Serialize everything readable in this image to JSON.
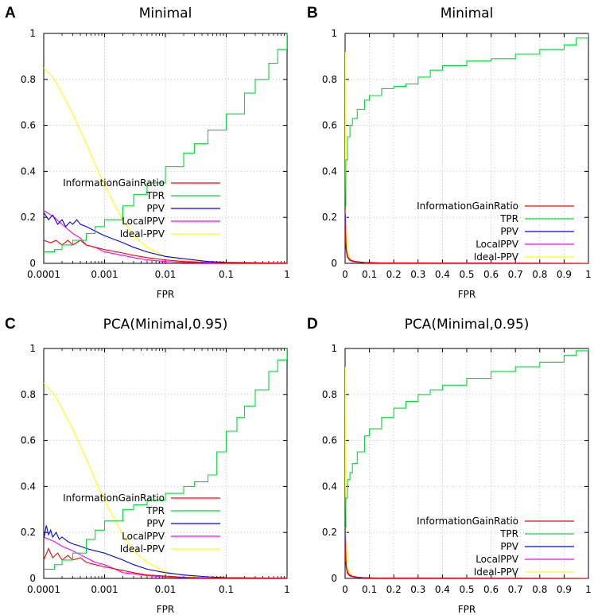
{
  "colors": {
    "InformationGainRatio": "#ff0000",
    "TPR": "#00dd33",
    "PPV": "#0000ff",
    "LocalPPV": "#ff00ff",
    "Ideal-PPV": "#ffff00",
    "grid": "#bbbbbb",
    "axis": "#000000"
  },
  "legend_order": [
    "InformationGainRatio",
    "TPR",
    "PPV",
    "LocalPPV",
    "Ideal-PPV"
  ],
  "chart_data": [
    {
      "panel": "A",
      "title": "Minimal",
      "type": "line",
      "xscale": "log",
      "xlabel": "FPR",
      "ylabel": "",
      "xlim": [
        0.0001,
        1
      ],
      "ylim": [
        0,
        1
      ],
      "xticks": [
        0.0001,
        0.001,
        0.01,
        0.1,
        1
      ],
      "xtick_labels": [
        "0.0001",
        "0.001",
        "0.01",
        "0.1",
        "1"
      ],
      "yticks": [
        0,
        0.2,
        0.4,
        0.6,
        0.8,
        1
      ],
      "ytick_labels": [
        "0",
        "0.2",
        "0.4",
        "0.6",
        "0.8",
        "1"
      ],
      "grid": true,
      "legend": "bottom-center",
      "series": [
        {
          "name": "InformationGainRatio",
          "x": [
            0.0001,
            0.00013,
            0.00016,
            0.0002,
            0.00025,
            0.0003,
            0.0004,
            0.0005,
            0.0007,
            0.001,
            0.002,
            0.003,
            0.005,
            0.01,
            0.02,
            0.05,
            0.1,
            1
          ],
          "y": [
            0.1,
            0.09,
            0.1,
            0.08,
            0.1,
            0.08,
            0.1,
            0.08,
            0.07,
            0.06,
            0.045,
            0.035,
            0.025,
            0.015,
            0.008,
            0.004,
            0.002,
            0.001
          ]
        },
        {
          "name": "TPR",
          "x": [
            0.0001,
            0.00015,
            0.0002,
            0.0003,
            0.0005,
            0.0007,
            0.001,
            0.002,
            0.003,
            0.005,
            0.01,
            0.02,
            0.03,
            0.05,
            0.1,
            0.2,
            0.3,
            0.5,
            0.7,
            1
          ],
          "y": [
            0.05,
            0.06,
            0.08,
            0.1,
            0.13,
            0.16,
            0.19,
            0.25,
            0.3,
            0.35,
            0.42,
            0.48,
            0.52,
            0.58,
            0.65,
            0.74,
            0.8,
            0.87,
            0.93,
            1.0
          ]
        },
        {
          "name": "PPV",
          "x": [
            0.0001,
            0.00012,
            0.00014,
            0.00017,
            0.0002,
            0.00023,
            0.00027,
            0.0003,
            0.00035,
            0.0004,
            0.0005,
            0.0007,
            0.001,
            0.002,
            0.003,
            0.005,
            0.01,
            0.02,
            0.05,
            0.1,
            1
          ],
          "y": [
            0.22,
            0.19,
            0.21,
            0.17,
            0.19,
            0.16,
            0.18,
            0.17,
            0.19,
            0.17,
            0.16,
            0.14,
            0.12,
            0.09,
            0.07,
            0.05,
            0.03,
            0.02,
            0.008,
            0.004,
            0.001
          ]
        },
        {
          "name": "LocalPPV",
          "x": [
            0.0001,
            0.00015,
            0.0002,
            0.0003,
            0.0004,
            0.0005,
            0.0007,
            0.001,
            0.002,
            0.003,
            0.005,
            0.01,
            0.02,
            0.05,
            1
          ],
          "y": [
            0.23,
            0.2,
            0.17,
            0.13,
            0.11,
            0.08,
            0.07,
            0.05,
            0.035,
            0.025,
            0.015,
            0.008,
            0.004,
            0.002,
            0.001
          ]
        },
        {
          "name": "Ideal-PPV",
          "x": [
            0.0001,
            0.00015,
            0.0002,
            0.0003,
            0.0005,
            0.0007,
            0.001,
            0.0015,
            0.002,
            0.003,
            0.005,
            0.01,
            0.02,
            0.05,
            0.1,
            0.2,
            1
          ],
          "y": [
            0.85,
            0.8,
            0.74,
            0.65,
            0.52,
            0.43,
            0.34,
            0.25,
            0.19,
            0.12,
            0.07,
            0.03,
            0.012,
            0.004,
            0.002,
            0.001,
            0.0
          ]
        }
      ]
    },
    {
      "panel": "B",
      "title": "Minimal",
      "type": "line",
      "xscale": "linear",
      "xlabel": "FPR",
      "ylabel": "",
      "xlim": [
        0,
        1
      ],
      "ylim": [
        0,
        1
      ],
      "xticks": [
        0,
        0.1,
        0.2,
        0.3,
        0.4,
        0.5,
        0.6,
        0.7,
        0.8,
        0.9,
        1
      ],
      "xtick_labels": [
        "0",
        "0.1",
        "0.2",
        "0.3",
        "0.4",
        "0.5",
        "0.6",
        "0.7",
        "0.8",
        "0.9",
        "1"
      ],
      "yticks": [
        0,
        0.2,
        0.4,
        0.6,
        0.8,
        1
      ],
      "ytick_labels": [
        "0",
        "0.2",
        "0.4",
        "0.6",
        "0.8",
        "1"
      ],
      "grid": true,
      "legend": "bottom-right",
      "series": [
        {
          "name": "InformationGainRatio",
          "x": [
            0,
            0.003,
            0.008,
            0.015,
            0.03,
            0.06,
            0.1,
            1
          ],
          "y": [
            0.18,
            0.08,
            0.04,
            0.02,
            0.01,
            0.005,
            0.002,
            0.0
          ]
        },
        {
          "name": "TPR",
          "x": [
            0,
            0.003,
            0.01,
            0.02,
            0.03,
            0.05,
            0.08,
            0.1,
            0.15,
            0.2,
            0.25,
            0.3,
            0.35,
            0.4,
            0.5,
            0.6,
            0.7,
            0.8,
            0.9,
            0.95,
            1
          ],
          "y": [
            0.25,
            0.45,
            0.55,
            0.6,
            0.63,
            0.67,
            0.71,
            0.73,
            0.76,
            0.77,
            0.78,
            0.81,
            0.84,
            0.86,
            0.88,
            0.89,
            0.91,
            0.93,
            0.95,
            0.98,
            1.0
          ]
        },
        {
          "name": "PPV",
          "x": [
            0,
            0.002,
            0.005,
            0.01,
            0.02,
            0.04,
            0.08,
            0.15,
            1
          ],
          "y": [
            0.22,
            0.12,
            0.06,
            0.03,
            0.015,
            0.008,
            0.004,
            0.002,
            0.0
          ]
        },
        {
          "name": "LocalPPV",
          "x": [
            0,
            0.002,
            0.005,
            0.01,
            0.02,
            0.04,
            0.08,
            0.15,
            1
          ],
          "y": [
            0.23,
            0.1,
            0.05,
            0.025,
            0.012,
            0.006,
            0.003,
            0.001,
            0.0
          ]
        },
        {
          "name": "Ideal-PPV",
          "x": [
            0,
            0.001,
            0.002,
            0.004,
            0.008,
            0.015,
            0.03,
            0.06,
            0.1,
            1
          ],
          "y": [
            0.92,
            0.6,
            0.4,
            0.2,
            0.08,
            0.03,
            0.01,
            0.004,
            0.002,
            0.0
          ]
        }
      ]
    },
    {
      "panel": "C",
      "title": "PCA(Minimal,0.95)",
      "type": "line",
      "xscale": "log",
      "xlabel": "FPR",
      "ylabel": "",
      "xlim": [
        0.0001,
        1
      ],
      "ylim": [
        0,
        1
      ],
      "xticks": [
        0.0001,
        0.001,
        0.01,
        0.1,
        1
      ],
      "xtick_labels": [
        "0.0001",
        "0.001",
        "0.01",
        "0.1",
        "1"
      ],
      "yticks": [
        0,
        0.2,
        0.4,
        0.6,
        0.8,
        1
      ],
      "ytick_labels": [
        "0",
        "0.2",
        "0.4",
        "0.6",
        "0.8",
        "1"
      ],
      "grid": true,
      "legend": "bottom-center",
      "series": [
        {
          "name": "InformationGainRatio",
          "x": [
            0.0001,
            0.00012,
            0.00014,
            0.00017,
            0.0002,
            0.00025,
            0.0003,
            0.0004,
            0.0005,
            0.0007,
            0.001,
            0.002,
            0.003,
            0.005,
            0.01,
            0.02,
            0.05,
            1
          ],
          "y": [
            0.08,
            0.13,
            0.09,
            0.11,
            0.08,
            0.1,
            0.08,
            0.09,
            0.07,
            0.06,
            0.05,
            0.035,
            0.025,
            0.015,
            0.01,
            0.005,
            0.002,
            0.001
          ]
        },
        {
          "name": "TPR",
          "x": [
            0.0001,
            0.00015,
            0.0002,
            0.0003,
            0.0005,
            0.0007,
            0.001,
            0.002,
            0.003,
            0.005,
            0.01,
            0.02,
            0.03,
            0.05,
            0.07,
            0.1,
            0.15,
            0.2,
            0.3,
            0.5,
            0.7,
            1
          ],
          "y": [
            0.04,
            0.06,
            0.08,
            0.11,
            0.17,
            0.21,
            0.25,
            0.3,
            0.32,
            0.34,
            0.37,
            0.4,
            0.42,
            0.45,
            0.55,
            0.64,
            0.7,
            0.75,
            0.82,
            0.9,
            0.95,
            1.0
          ]
        },
        {
          "name": "PPV",
          "x": [
            0.0001,
            0.00011,
            0.00012,
            0.00013,
            0.00014,
            0.00016,
            0.00018,
            0.0002,
            0.00025,
            0.0003,
            0.0004,
            0.0005,
            0.0007,
            0.001,
            0.002,
            0.003,
            0.005,
            0.01,
            0.02,
            0.05,
            0.1,
            1
          ],
          "y": [
            0.17,
            0.23,
            0.19,
            0.21,
            0.18,
            0.2,
            0.17,
            0.18,
            0.16,
            0.15,
            0.14,
            0.13,
            0.12,
            0.11,
            0.08,
            0.06,
            0.04,
            0.025,
            0.015,
            0.007,
            0.003,
            0.001
          ]
        },
        {
          "name": "LocalPPV",
          "x": [
            0.0001,
            0.00015,
            0.0002,
            0.0003,
            0.0005,
            0.0007,
            0.001,
            0.0015,
            0.002,
            0.003,
            0.005,
            0.01,
            0.02,
            0.05,
            1
          ],
          "y": [
            0.18,
            0.16,
            0.14,
            0.12,
            0.09,
            0.07,
            0.06,
            0.04,
            0.025,
            0.02,
            0.012,
            0.006,
            0.003,
            0.001,
            0.0
          ]
        },
        {
          "name": "Ideal-PPV",
          "x": [
            0.0001,
            0.00015,
            0.0002,
            0.0003,
            0.0005,
            0.0007,
            0.001,
            0.0015,
            0.002,
            0.003,
            0.005,
            0.01,
            0.02,
            0.05,
            0.1,
            0.2,
            1
          ],
          "y": [
            0.85,
            0.8,
            0.74,
            0.65,
            0.52,
            0.43,
            0.34,
            0.25,
            0.19,
            0.12,
            0.07,
            0.03,
            0.012,
            0.004,
            0.002,
            0.001,
            0.0
          ]
        }
      ]
    },
    {
      "panel": "D",
      "title": "PCA(Minimal,0.95)",
      "type": "line",
      "xscale": "linear",
      "xlabel": "FPR",
      "ylabel": "",
      "xlim": [
        0,
        1
      ],
      "ylim": [
        0,
        1
      ],
      "xticks": [
        0,
        0.1,
        0.2,
        0.3,
        0.4,
        0.5,
        0.6,
        0.7,
        0.8,
        0.9,
        1
      ],
      "xtick_labels": [
        "0",
        "0.1",
        "0.2",
        "0.3",
        "0.4",
        "0.5",
        "0.6",
        "0.7",
        "0.8",
        "0.9",
        "1"
      ],
      "yticks": [
        0,
        0.2,
        0.4,
        0.6,
        0.8,
        1
      ],
      "ytick_labels": [
        "0",
        "0.2",
        "0.4",
        "0.6",
        "0.8",
        "1"
      ],
      "grid": true,
      "legend": "bottom-right",
      "series": [
        {
          "name": "InformationGainRatio",
          "x": [
            0,
            0.003,
            0.008,
            0.015,
            0.03,
            0.06,
            0.1,
            1
          ],
          "y": [
            0.17,
            0.07,
            0.035,
            0.018,
            0.009,
            0.004,
            0.002,
            0.0
          ]
        },
        {
          "name": "TPR",
          "x": [
            0,
            0.003,
            0.01,
            0.02,
            0.03,
            0.05,
            0.08,
            0.1,
            0.15,
            0.2,
            0.25,
            0.3,
            0.35,
            0.4,
            0.5,
            0.6,
            0.7,
            0.8,
            0.9,
            0.95,
            1
          ],
          "y": [
            0.22,
            0.35,
            0.43,
            0.46,
            0.5,
            0.55,
            0.62,
            0.65,
            0.7,
            0.74,
            0.77,
            0.8,
            0.82,
            0.84,
            0.87,
            0.9,
            0.92,
            0.94,
            0.97,
            0.99,
            1.0
          ]
        },
        {
          "name": "PPV",
          "x": [
            0,
            0.002,
            0.005,
            0.01,
            0.02,
            0.04,
            0.08,
            0.15,
            1
          ],
          "y": [
            0.2,
            0.11,
            0.05,
            0.025,
            0.012,
            0.006,
            0.003,
            0.001,
            0.0
          ]
        },
        {
          "name": "LocalPPV",
          "x": [
            0,
            0.002,
            0.005,
            0.01,
            0.02,
            0.04,
            0.08,
            0.15,
            1
          ],
          "y": [
            0.18,
            0.09,
            0.045,
            0.02,
            0.01,
            0.005,
            0.002,
            0.001,
            0.0
          ]
        },
        {
          "name": "Ideal-PPV",
          "x": [
            0,
            0.001,
            0.002,
            0.004,
            0.008,
            0.015,
            0.03,
            0.06,
            0.1,
            1
          ],
          "y": [
            0.92,
            0.6,
            0.4,
            0.2,
            0.08,
            0.03,
            0.01,
            0.004,
            0.002,
            0.0
          ]
        }
      ]
    }
  ]
}
